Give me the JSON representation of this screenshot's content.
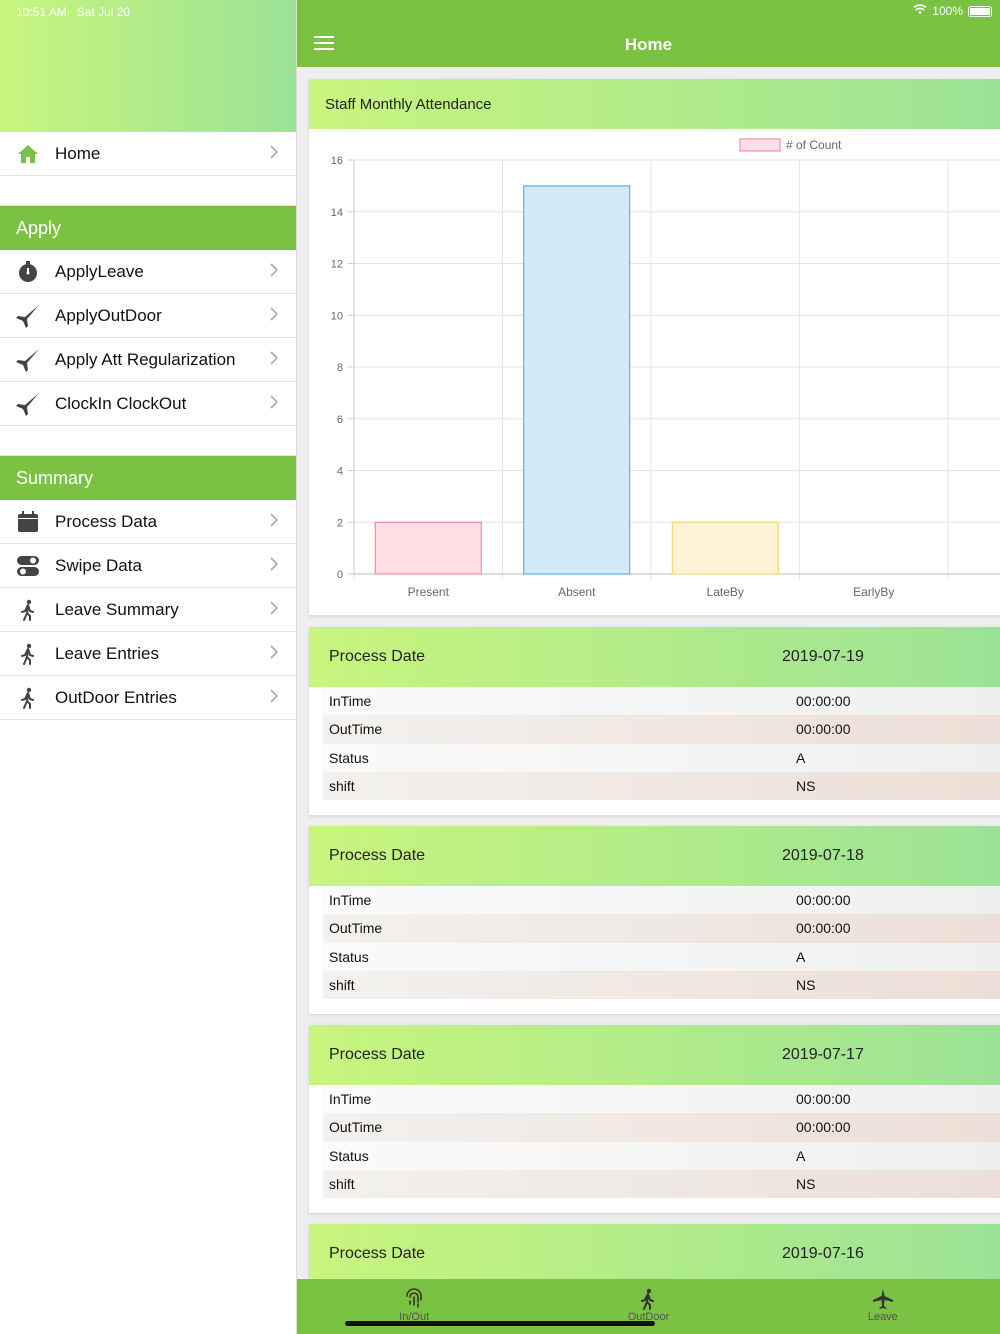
{
  "status_bar": {
    "time": "10:51 AM",
    "date": "Sat Jul 20",
    "battery": "100%"
  },
  "colors": {
    "accent": "#7bc142",
    "header_gradient_start": "#c8f57d",
    "header_gradient_end": "#9be296"
  },
  "sidebar": {
    "top_items": [
      {
        "label": "Home",
        "icon": "home-icon"
      }
    ],
    "apply_section": {
      "title": "Apply",
      "items": [
        {
          "label": "ApplyLeave",
          "icon": "stopwatch-icon"
        },
        {
          "label": "ApplyOutDoor",
          "icon": "jet-icon"
        },
        {
          "label": "Apply Att Regularization",
          "icon": "jet-icon"
        },
        {
          "label": "ClockIn ClockOut",
          "icon": "jet-icon"
        }
      ]
    },
    "summary_section": {
      "title": "Summary",
      "items": [
        {
          "label": "Process Data",
          "icon": "calendar-icon"
        },
        {
          "label": "Swipe Data",
          "icon": "toggle-icon"
        },
        {
          "label": "Leave Summary",
          "icon": "walking-icon"
        },
        {
          "label": "Leave Entries",
          "icon": "walking-icon"
        },
        {
          "label": "OutDoor Entries",
          "icon": "walking-icon"
        }
      ]
    }
  },
  "header": {
    "title": "Home"
  },
  "chart_card": {
    "title": "Staff Monthly Attendance"
  },
  "chart_data": {
    "type": "bar",
    "title": "Staff Monthly Attendance",
    "categories": [
      "Present",
      "Absent",
      "LateBy",
      "EarlyBy"
    ],
    "series": [
      {
        "name": "# of Count",
        "values": [
          2,
          15,
          2,
          0
        ]
      }
    ],
    "ylim": [
      0,
      16
    ],
    "yticks": [
      "0",
      "2",
      "4",
      "6",
      "8",
      "10",
      "12",
      "14",
      "16"
    ],
    "bar_fills": [
      "#ffdfe6",
      "#d3eaf9",
      "#fff3d8",
      "#e8e8e8"
    ],
    "bar_strokes": [
      "#f7788f",
      "#46a2e3",
      "#f8cd60",
      "#bbbbbb"
    ],
    "legend_position": "top",
    "grid": true
  },
  "records": [
    {
      "header_label": "Process Date",
      "date": "2019-07-19",
      "rows": [
        {
          "label": "InTime",
          "value": "00:00:00"
        },
        {
          "label": "OutTime",
          "value": "00:00:00"
        },
        {
          "label": "Status",
          "value": "A"
        },
        {
          "label": "shift",
          "value": "NS"
        }
      ]
    },
    {
      "header_label": "Process Date",
      "date": "2019-07-18",
      "rows": [
        {
          "label": "InTime",
          "value": "00:00:00"
        },
        {
          "label": "OutTime",
          "value": "00:00:00"
        },
        {
          "label": "Status",
          "value": "A"
        },
        {
          "label": "shift",
          "value": "NS"
        }
      ]
    },
    {
      "header_label": "Process Date",
      "date": "2019-07-17",
      "rows": [
        {
          "label": "InTime",
          "value": "00:00:00"
        },
        {
          "label": "OutTime",
          "value": "00:00:00"
        },
        {
          "label": "Status",
          "value": "A"
        },
        {
          "label": "shift",
          "value": "NS"
        }
      ]
    },
    {
      "header_label": "Process Date",
      "date": "2019-07-16",
      "rows": []
    }
  ],
  "tabbar": {
    "tabs": [
      {
        "label": "In/Out",
        "icon": "fingerprint-icon"
      },
      {
        "label": "OutDoor",
        "icon": "walking-icon"
      },
      {
        "label": "Leave",
        "icon": "airplane-icon"
      }
    ]
  }
}
